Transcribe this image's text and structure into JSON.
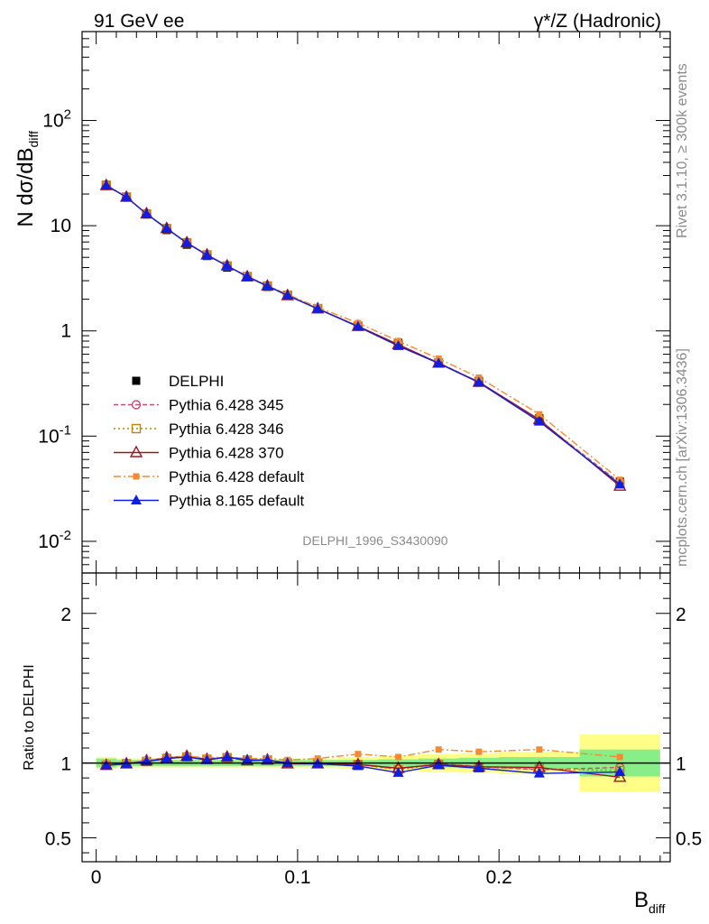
{
  "header": {
    "left": "91 GeV ee",
    "right": "γ*/Z (Hadronic)"
  },
  "side_texts": {
    "rivet": "Rivet 3.1.10, ≥ 300k events",
    "mcplots": "mcplots.cern.ch [arXiv:1306.3436]"
  },
  "watermark": "DELPHI_1996_S3430090",
  "chart_data": {
    "type": "line",
    "xlabel": "B_diff",
    "ylabel": "N dσ/dB_diff",
    "ratio_ylabel": "Ratio to DELPHI",
    "xlim": [
      -0.007,
      0.285
    ],
    "ylim": [
      0.005,
      700
    ],
    "ratio_ylim": [
      0.34,
      2.27
    ],
    "x_ticks": [
      "0",
      "0.1",
      "0.2"
    ],
    "x_tick_values": [
      0,
      0.1,
      0.2
    ],
    "y_ticks": [
      "10^-2",
      "10^-1",
      "1",
      "10",
      "10^2"
    ],
    "y_tick_values": [
      0.01,
      0.1,
      1,
      10,
      100
    ],
    "ratio_ticks": [
      "0.5",
      "1",
      "2"
    ],
    "ratio_tick_values": [
      0.5,
      1,
      2
    ],
    "x": [
      0.005,
      0.015,
      0.025,
      0.035,
      0.045,
      0.055,
      0.065,
      0.075,
      0.085,
      0.095,
      0.11,
      0.13,
      0.15,
      0.17,
      0.19,
      0.22,
      0.26
    ],
    "data": {
      "name": "DELPHI",
      "values": [
        24.5,
        18.8,
        12.8,
        9.1,
        6.6,
        5.15,
        4.0,
        3.22,
        2.62,
        2.18,
        1.63,
        1.12,
        0.77,
        0.5,
        0.335,
        0.148,
        0.037
      ],
      "band_inner": [
        0.03,
        0.02,
        0.02,
        0.02,
        0.02,
        0.02,
        0.02,
        0.02,
        0.02,
        0.02,
        0.02,
        0.02,
        0.025,
        0.03,
        0.035,
        0.04,
        0.09
      ],
      "band_outer": [
        0.04,
        0.03,
        0.03,
        0.03,
        0.03,
        0.03,
        0.03,
        0.03,
        0.03,
        0.03,
        0.03,
        0.04,
        0.05,
        0.06,
        0.065,
        0.075,
        0.19
      ]
    },
    "series": [
      {
        "name": "Pythia 6.428 345",
        "color": "#c0506e",
        "dash": "5,3",
        "marker": "circle-open",
        "ratio": [
          0.985,
          0.995,
          1.01,
          1.03,
          1.04,
          1.025,
          1.035,
          1.02,
          1.02,
          1.0,
          1.0,
          0.99,
          0.96,
          0.995,
          0.975,
          0.955,
          0.97
        ]
      },
      {
        "name": "Pythia 6.428 346",
        "color": "#b8860b",
        "dash": "2,3",
        "marker": "square-open",
        "ratio": [
          0.985,
          0.995,
          1.01,
          1.03,
          1.04,
          1.025,
          1.035,
          1.02,
          1.02,
          1.0,
          1.0,
          0.99,
          0.955,
          0.99,
          0.97,
          0.96,
          0.95
        ]
      },
      {
        "name": "Pythia 6.428 370",
        "color": "#a01525",
        "dash": "",
        "marker": "triangle-open",
        "ratio": [
          0.985,
          0.995,
          1.015,
          1.035,
          1.045,
          1.025,
          1.04,
          1.015,
          1.02,
          0.995,
          0.995,
          0.99,
          0.965,
          0.99,
          0.975,
          0.97,
          0.905
        ]
      },
      {
        "name": "Pythia 6.428 default",
        "color": "#f58a35",
        "dash": "8,3,2,3",
        "marker": "square-filled",
        "ratio": [
          1.0,
          1.0,
          1.02,
          1.035,
          1.045,
          1.035,
          1.04,
          1.03,
          1.03,
          1.02,
          1.03,
          1.06,
          1.04,
          1.09,
          1.075,
          1.09,
          1.04
        ]
      },
      {
        "name": "Pythia 8.165 default",
        "color": "#0f1ee0",
        "dash": "",
        "marker": "triangle-filled",
        "ratio": [
          0.985,
          0.995,
          1.01,
          1.03,
          1.04,
          1.02,
          1.04,
          1.02,
          1.02,
          1.0,
          0.995,
          0.98,
          0.935,
          0.985,
          0.965,
          0.93,
          0.94
        ]
      }
    ]
  }
}
